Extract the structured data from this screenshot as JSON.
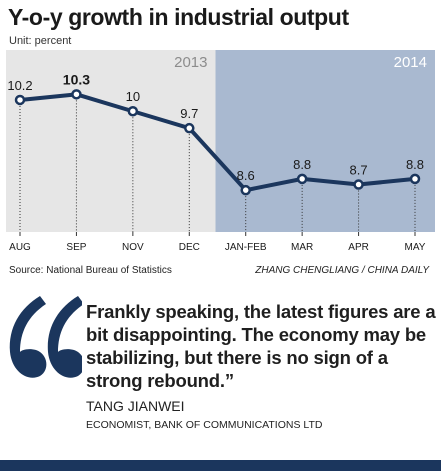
{
  "title": "Y-o-y growth in industrial output",
  "unit": "Unit: percent",
  "source": "Source: National Bureau of Statistics",
  "credit": "ZHANG CHENGLIANG / CHINA DAILY",
  "quote": {
    "text": "Frankly speaking, the latest figures are a bit disappointing. The economy may be stabilizing, but there is no sign of a strong rebound.”",
    "person": "TANG JIANWEI",
    "role": "ECONOMIST, BANK OF COMMUNICATIONS LTD"
  },
  "colors": {
    "line": "#1b365d",
    "panel_2013": "#e6e6e6",
    "panel_2014": "#a9b9d0",
    "quote_mark": "#1b365d"
  },
  "chart_data": {
    "type": "line",
    "title": "Y-o-y growth in industrial output",
    "ylabel": "Unit: percent",
    "categories": [
      "AUG",
      "SEP",
      "NOV",
      "DEC",
      "JAN-FEB",
      "MAR",
      "APR",
      "MAY"
    ],
    "values": [
      10.2,
      10.3,
      10,
      9.7,
      8.6,
      8.8,
      8.7,
      8.8
    ],
    "value_labels": [
      "10.2",
      "10.3",
      "10",
      "9.7",
      "8.6",
      "8.8",
      "8.7",
      "8.8"
    ],
    "highlight_index": 1,
    "periods": [
      {
        "label": "2013",
        "from": 0,
        "to": 3
      },
      {
        "label": "2014",
        "from": 4,
        "to": 7
      }
    ],
    "ylim": [
      8.0,
      10.6
    ],
    "grid": false,
    "drop_lines": true
  }
}
